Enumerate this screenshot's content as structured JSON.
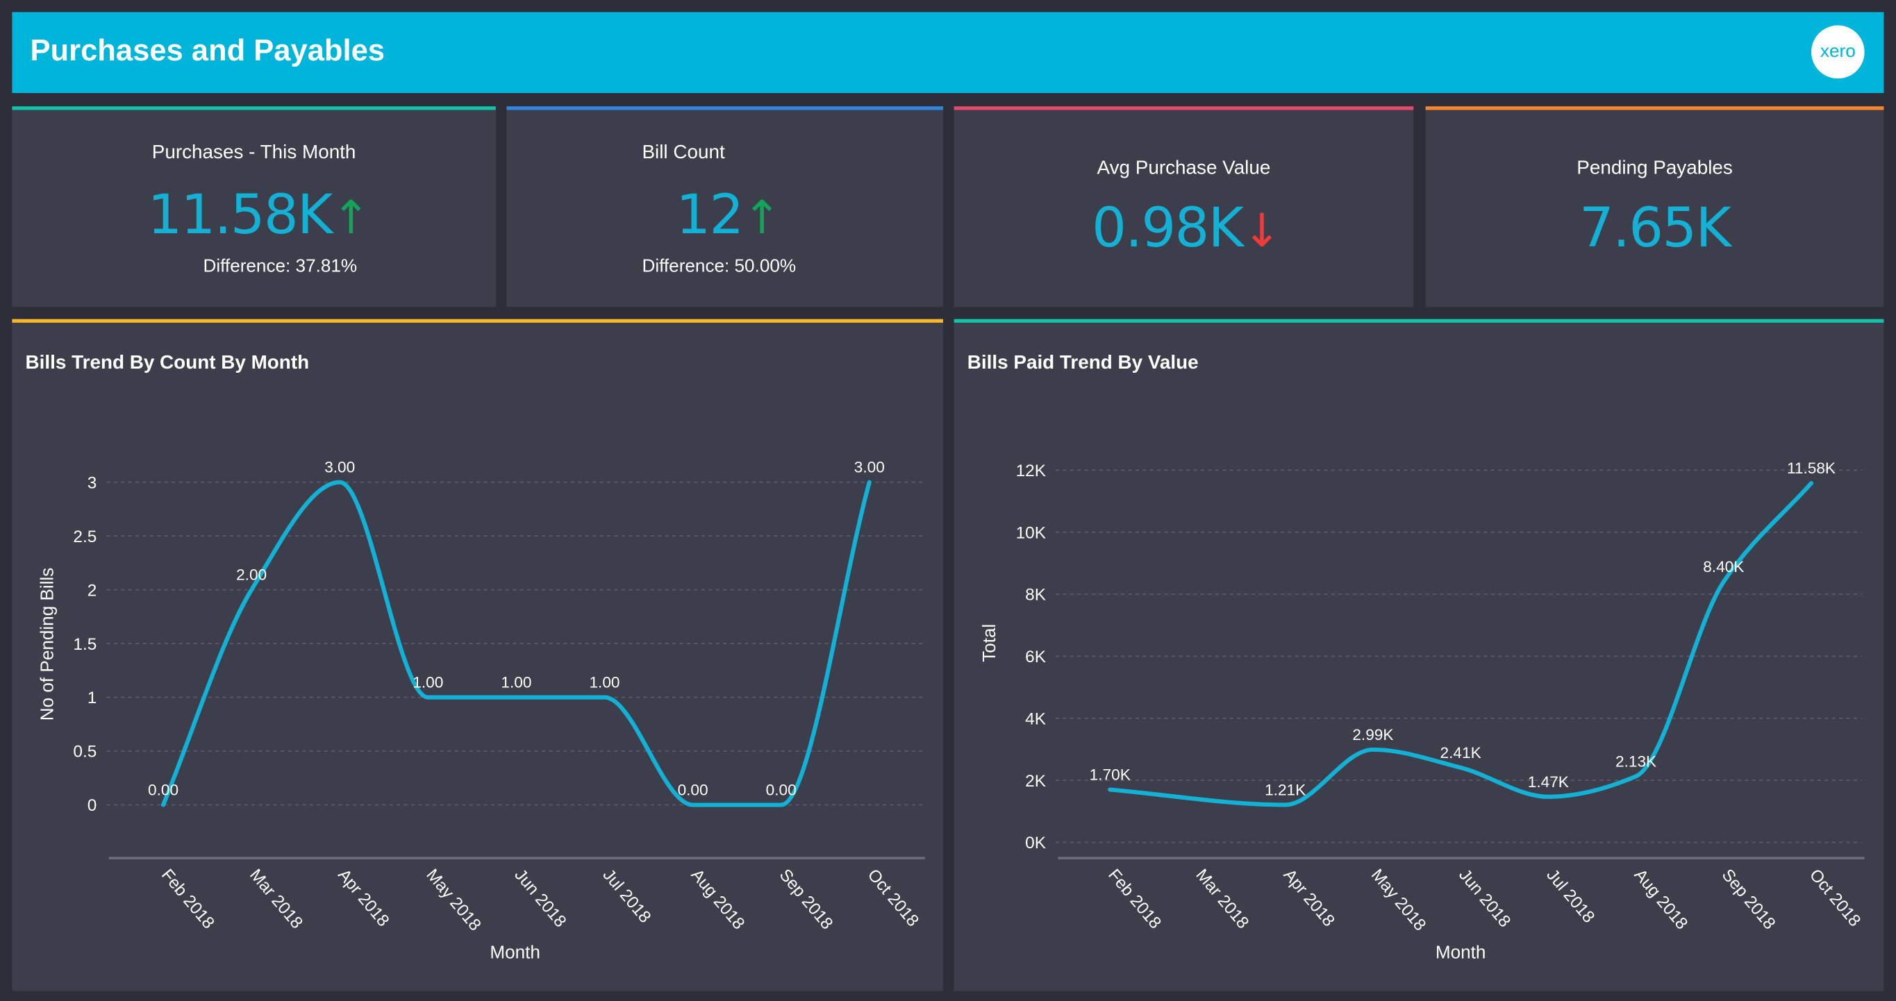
{
  "header": {
    "title": "Purchases and Payables",
    "logo_text": "xero",
    "color": "#00b5d9"
  },
  "kpis": [
    {
      "title": "Purchases - This Month",
      "value": "11.58K",
      "trend": "up",
      "trend_glyph": "↑",
      "difference": "Difference: 37.81%",
      "accent": "#11c4a8"
    },
    {
      "title": "Bill Count",
      "value": "12",
      "trend": "up",
      "trend_glyph": "↑",
      "difference": "Difference: 50.00%",
      "accent": "#2f86dd"
    },
    {
      "title": "Avg Purchase Value",
      "value": "0.98K",
      "trend": "down",
      "trend_glyph": "↓",
      "accent": "#e54a6c"
    },
    {
      "title": "Pending Payables",
      "value": "7.65K",
      "accent": "#f5862b"
    }
  ],
  "chart_data": [
    {
      "type": "line",
      "title": "Bills Trend By Count By Month",
      "accent": "#fbb82a",
      "xlabel": "Month",
      "ylabel": "No of Pending Bills",
      "categories": [
        "Feb 2018",
        "Mar 2018",
        "Apr 2018",
        "May 2018",
        "Jun 2018",
        "Jul 2018",
        "Aug 2018",
        "Sep 2018",
        "Oct 2018"
      ],
      "values": [
        0,
        2,
        3,
        1,
        1,
        1,
        0,
        0,
        3
      ],
      "labels": [
        "0.00",
        "2.00",
        "3.00",
        "1.00",
        "1.00",
        "1.00",
        "0.00",
        "0.00",
        "3.00"
      ],
      "yticks": [
        "0",
        "0.5",
        "1",
        "1.5",
        "2",
        "2.5",
        "3"
      ],
      "ylim": [
        0,
        3
      ],
      "grid": true,
      "line_color": "#14b1d6"
    },
    {
      "type": "line",
      "title": "Bills Paid Trend By Value",
      "accent": "#11c4a8",
      "xlabel": "Month",
      "ylabel": "Total",
      "categories": [
        "Feb 2018",
        "Mar 2018",
        "Apr 2018",
        "May 2018",
        "Jun 2018",
        "Jul 2018",
        "Aug 2018",
        "Sep 2018",
        "Oct 2018"
      ],
      "values": [
        1700,
        null,
        1210,
        2990,
        2410,
        1470,
        2130,
        8400,
        11580
      ],
      "labels": [
        "1.70K",
        "",
        "1.21K",
        "2.99K",
        "2.41K",
        "1.47K",
        "2.13K",
        "8.40K",
        "11.58K"
      ],
      "yticks": [
        "0K",
        "2K",
        "4K",
        "6K",
        "8K",
        "10K",
        "12K"
      ],
      "ylim": [
        0,
        12000
      ],
      "grid": true,
      "line_color": "#14b1d6"
    }
  ]
}
